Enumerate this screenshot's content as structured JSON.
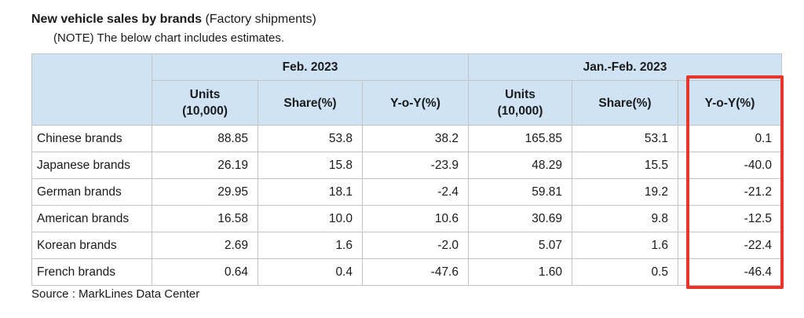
{
  "title": {
    "bold": "New vehicle sales by brands",
    "normal": " (Factory shipments)"
  },
  "note": "(NOTE) The below chart includes estimates.",
  "table": {
    "groups": [
      "Feb. 2023",
      "Jan.-Feb. 2023"
    ],
    "subheaders": [
      [
        "Units",
        "(10,000)"
      ],
      [
        "Share(%)"
      ],
      [
        "Y-o-Y(%)"
      ],
      [
        "Units",
        "(10,000)"
      ],
      [
        "Share(%)"
      ],
      [
        "Y-o-Y(%)"
      ]
    ],
    "rows": [
      {
        "brand": "Chinese brands",
        "cells": [
          "88.85",
          "53.8",
          "38.2",
          "165.85",
          "53.1",
          "0.1"
        ]
      },
      {
        "brand": "Japanese brands",
        "cells": [
          "26.19",
          "15.8",
          "-23.9",
          "48.29",
          "15.5",
          "-40.0"
        ]
      },
      {
        "brand": "German brands",
        "cells": [
          "29.95",
          "18.1",
          "-2.4",
          "59.81",
          "19.2",
          "-21.2"
        ]
      },
      {
        "brand": "American brands",
        "cells": [
          "16.58",
          "10.0",
          "10.6",
          "30.69",
          "9.8",
          "-12.5"
        ]
      },
      {
        "brand": "Korean brands",
        "cells": [
          "2.69",
          "1.6",
          "-2.0",
          "5.07",
          "1.6",
          "-22.4"
        ]
      },
      {
        "brand": "French brands",
        "cells": [
          "0.64",
          "0.4",
          "-47.6",
          "1.60",
          "0.5",
          "-46.4"
        ]
      }
    ]
  },
  "source": "Source : MarkLines Data Center",
  "colors": {
    "header_background": "#cfe3f5",
    "highlight": "#e8352b",
    "grid": "#c4c4c4"
  }
}
